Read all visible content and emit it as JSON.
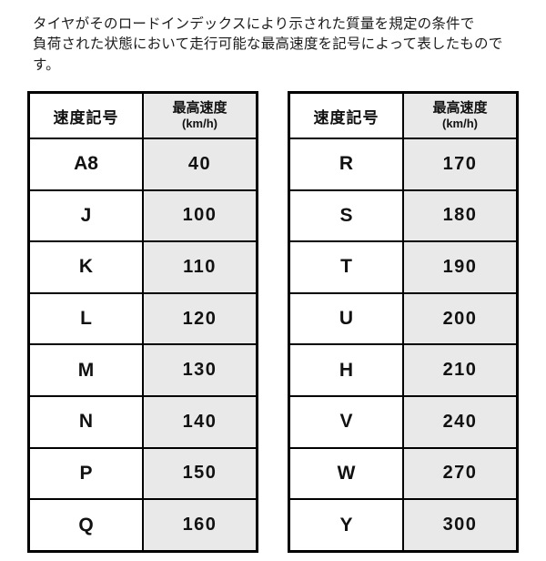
{
  "description": {
    "line1": "タイヤがそのロードインデックスにより示された質量を規定の条件で",
    "line2": "負荷された状態において走行可能な最高速度を記号によって表したものです。"
  },
  "tables": [
    {
      "headers": {
        "symbol": "速度記号",
        "speed": "最高速度",
        "unit": "(km/h)"
      },
      "rows": [
        {
          "symbol": "A8",
          "speed": "40"
        },
        {
          "symbol": "J",
          "speed": "100"
        },
        {
          "symbol": "K",
          "speed": "110"
        },
        {
          "symbol": "L",
          "speed": "120"
        },
        {
          "symbol": "M",
          "speed": "130"
        },
        {
          "symbol": "N",
          "speed": "140"
        },
        {
          "symbol": "P",
          "speed": "150"
        },
        {
          "symbol": "Q",
          "speed": "160"
        }
      ]
    },
    {
      "headers": {
        "symbol": "速度記号",
        "speed": "最高速度",
        "unit": "(km/h)"
      },
      "rows": [
        {
          "symbol": "R",
          "speed": "170"
        },
        {
          "symbol": "S",
          "speed": "180"
        },
        {
          "symbol": "T",
          "speed": "190"
        },
        {
          "symbol": "U",
          "speed": "200"
        },
        {
          "symbol": "H",
          "speed": "210"
        },
        {
          "symbol": "V",
          "speed": "240"
        },
        {
          "symbol": "W",
          "speed": "270"
        },
        {
          "symbol": "Y",
          "speed": "300"
        }
      ]
    }
  ],
  "colors": {
    "speed_column_bg": "#e9e9e9",
    "border": "#000000",
    "text": "#111111"
  }
}
